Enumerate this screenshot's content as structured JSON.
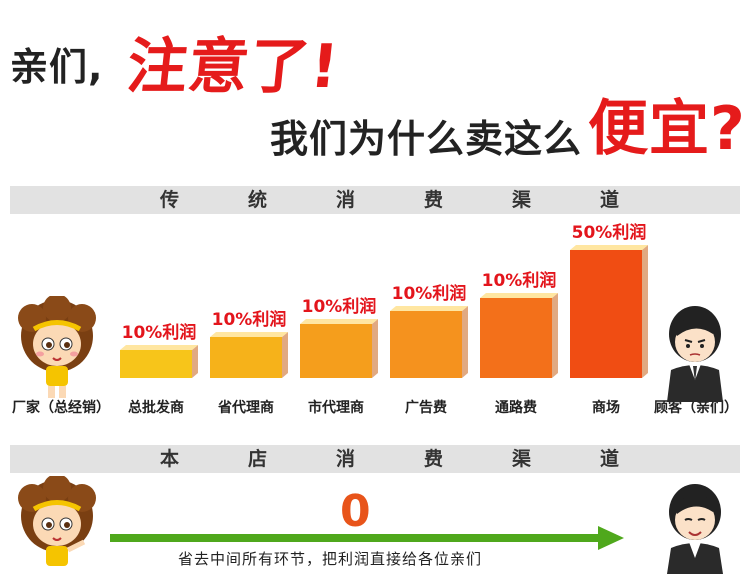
{
  "headline": {
    "line1_prefix": "亲们,",
    "line1_emphasis": "注意了!",
    "line2_prefix": "我们为什么卖这么",
    "line2_emphasis": "便宜?"
  },
  "traditional_channel": {
    "chars": [
      "传",
      "统",
      "消",
      "费",
      "渠",
      "道"
    ]
  },
  "store_channel": {
    "chars": [
      "本",
      "店",
      "消",
      "费",
      "渠",
      "道"
    ],
    "value": "0",
    "caption": "省去中间所有环节，把利润直接给各位亲们"
  },
  "colors": {
    "accent_red": "#e51b1b",
    "bar_yellow": "#f7c51a",
    "bar_orange": "#f5921e",
    "bar_red": "#f04d13",
    "arrow_green": "#4fa81c"
  },
  "chart_data": {
    "type": "bar",
    "categories": [
      "总批发商",
      "省代理商",
      "市代理商",
      "广告费",
      "通路费",
      "商场"
    ],
    "values": [
      10,
      10,
      10,
      10,
      10,
      50
    ],
    "data_labels": [
      "10%利润",
      "10%利润",
      "10%利润",
      "10%利润",
      "10%利润",
      "50%利润"
    ],
    "ends": [
      "厂家（总经销）",
      "顾客（亲们）"
    ]
  }
}
